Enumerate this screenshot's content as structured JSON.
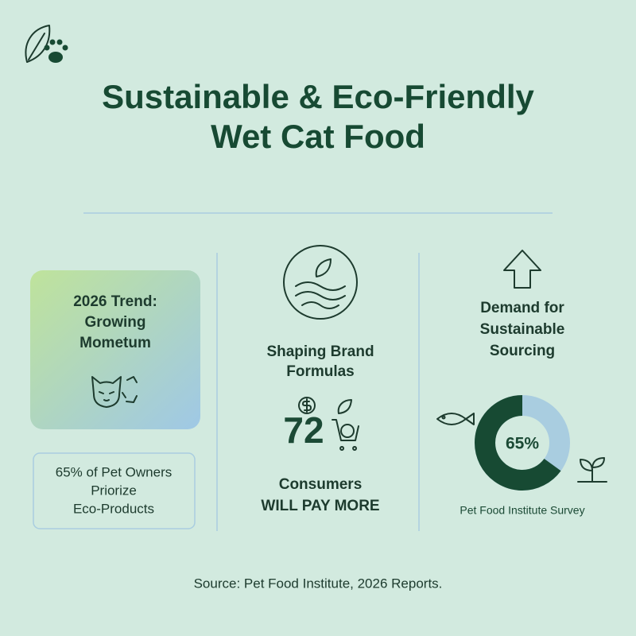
{
  "header": {
    "title_lines": [
      "Sustainable & Eco-Friendly",
      "Wet Cat Food"
    ]
  },
  "trend": {
    "lines": [
      "2026 Trend:",
      "Growing",
      "Mometum"
    ]
  },
  "stat_box": {
    "lines": [
      "65% of Pet Owners",
      "Priorize",
      "Eco-Products"
    ]
  },
  "brand": {
    "heading_lines": [
      "Shaping Brand",
      "Formulas"
    ],
    "figure": 72,
    "caption_lines": [
      "Consumers",
      "WILL PAY MORE"
    ]
  },
  "demand": {
    "heading_lines": [
      "Demand for",
      "Sustainable",
      "Sourcing"
    ],
    "donut": {
      "value": 65,
      "label": "65%"
    },
    "caption": "Pet Food Institute Survey"
  },
  "footer": {
    "source": "Source: Pet Food Institute, 2026 Reports."
  }
}
